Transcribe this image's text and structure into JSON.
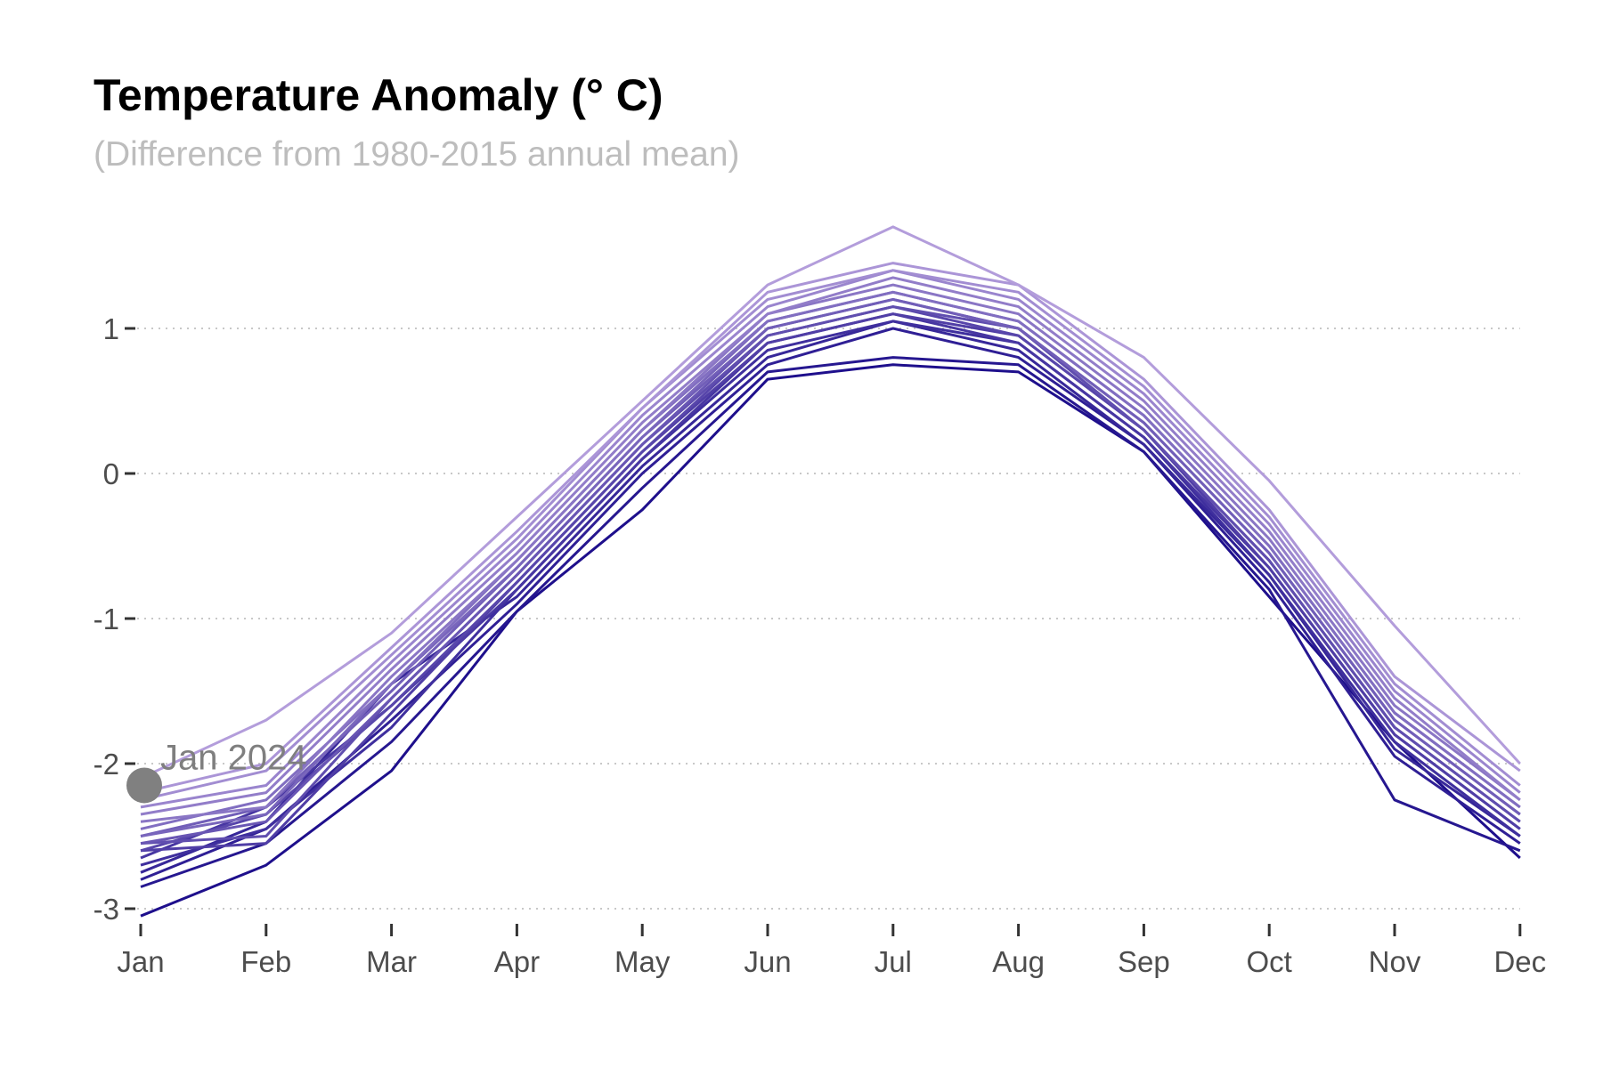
{
  "chart_data": {
    "type": "line",
    "title": "Temperature Anomaly (° C)",
    "subtitle": "(Difference from 1980-2015 annual mean)",
    "xlabel": "",
    "ylabel": "",
    "categories": [
      "Jan",
      "Feb",
      "Mar",
      "Apr",
      "May",
      "Jun",
      "Jul",
      "Aug",
      "Sep",
      "Oct",
      "Nov",
      "Dec"
    ],
    "y_ticks": [
      "-3",
      "-2",
      "-1",
      "0",
      "1"
    ],
    "ylim": [
      -3.3,
      1.8
    ],
    "grid": "horizontal-dotted",
    "legend": "none",
    "colors": {
      "dark": "#1e0f8c",
      "light": "#b39ddb",
      "grid": "#c8c8c8",
      "marker": "#808080"
    },
    "series": [
      {
        "values": [
          -3.05,
          -2.7,
          -2.05,
          -0.95,
          -0.25,
          0.65,
          0.75,
          0.7,
          0.15,
          -0.85,
          -1.85,
          -2.65
        ]
      },
      {
        "values": [
          -2.85,
          -2.55,
          -1.85,
          -0.95,
          -0.1,
          0.7,
          0.8,
          0.75,
          0.15,
          -0.8,
          -2.25,
          -2.6
        ]
      },
      {
        "values": [
          -2.8,
          -2.45,
          -1.7,
          -0.9,
          0.0,
          0.75,
          1.0,
          0.8,
          0.2,
          -0.75,
          -1.95,
          -2.55
        ]
      },
      {
        "values": [
          -2.75,
          -2.4,
          -1.45,
          -0.85,
          0.05,
          0.8,
          1.05,
          0.85,
          0.2,
          -0.7,
          -1.9,
          -2.5
        ]
      },
      {
        "values": [
          -2.7,
          -2.45,
          -1.75,
          -0.8,
          0.1,
          0.85,
          1.05,
          0.9,
          0.25,
          -0.7,
          -1.85,
          -2.5
        ]
      },
      {
        "values": [
          -2.65,
          -2.3,
          -1.6,
          -0.8,
          0.1,
          0.9,
          1.1,
          0.9,
          0.25,
          -0.65,
          -1.8,
          -2.45
        ]
      },
      {
        "values": [
          -2.6,
          -2.55,
          -1.65,
          -0.75,
          0.15,
          0.9,
          1.1,
          0.95,
          0.3,
          -0.65,
          -1.8,
          -2.45
        ]
      },
      {
        "values": [
          -2.6,
          -2.35,
          -1.6,
          -0.75,
          0.15,
          0.95,
          1.15,
          0.95,
          0.3,
          -0.6,
          -1.75,
          -2.4
        ]
      },
      {
        "values": [
          -2.55,
          -2.5,
          -1.55,
          -0.7,
          0.2,
          0.95,
          1.15,
          1.0,
          0.3,
          -0.6,
          -1.75,
          -2.4
        ]
      },
      {
        "values": [
          -2.55,
          -2.4,
          -1.55,
          -0.7,
          0.2,
          1.0,
          1.2,
          1.0,
          0.35,
          -0.55,
          -1.7,
          -2.35
        ]
      },
      {
        "values": [
          -2.5,
          -2.3,
          -1.5,
          -0.65,
          0.25,
          1.0,
          1.2,
          1.0,
          0.35,
          -0.55,
          -1.7,
          -2.35
        ]
      },
      {
        "values": [
          -2.5,
          -2.35,
          -1.45,
          -0.65,
          0.25,
          1.05,
          1.25,
          1.05,
          0.4,
          -0.5,
          -1.65,
          -2.3
        ]
      },
      {
        "values": [
          -2.45,
          -2.25,
          -1.45,
          -0.6,
          0.3,
          1.05,
          1.25,
          1.05,
          0.4,
          -0.5,
          -1.65,
          -2.3
        ]
      },
      {
        "values": [
          -2.4,
          -2.3,
          -1.4,
          -0.6,
          0.3,
          1.1,
          1.3,
          1.1,
          0.45,
          -0.45,
          -1.6,
          -2.25
        ]
      },
      {
        "values": [
          -2.35,
          -2.2,
          -1.35,
          -0.55,
          0.35,
          1.1,
          1.35,
          1.15,
          0.5,
          -0.4,
          -1.55,
          -2.25
        ]
      },
      {
        "values": [
          -2.3,
          -2.15,
          -1.3,
          -0.5,
          0.4,
          1.15,
          1.4,
          1.2,
          0.55,
          -0.35,
          -1.5,
          -2.2
        ]
      },
      {
        "values": [
          -2.25,
          -2.05,
          -1.25,
          -0.45,
          0.45,
          1.2,
          1.4,
          1.25,
          0.6,
          -0.3,
          -1.45,
          -2.15
        ]
      },
      {
        "values": [
          -2.2,
          -2.0,
          -1.2,
          -0.4,
          0.45,
          1.25,
          1.45,
          1.3,
          0.65,
          -0.25,
          -1.4,
          -2.05
        ]
      },
      {
        "values": [
          -2.1,
          -1.7,
          -1.1,
          -0.3,
          0.5,
          1.3,
          1.7,
          1.3,
          0.8,
          -0.05,
          -1.05,
          -2.0
        ]
      }
    ],
    "annotation": {
      "label": "Jan 2024",
      "x": "Jan",
      "y": -2.15
    }
  }
}
